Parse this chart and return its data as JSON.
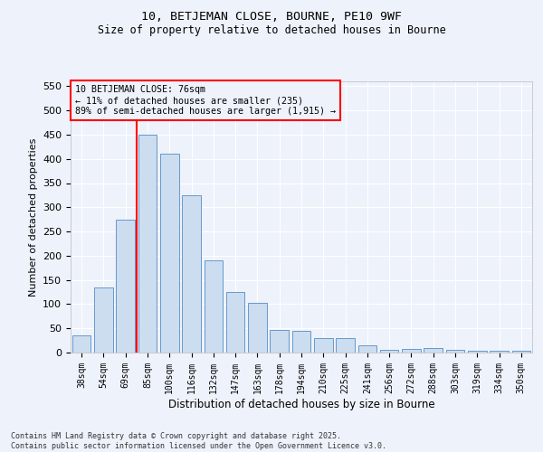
{
  "title1": "10, BETJEMAN CLOSE, BOURNE, PE10 9WF",
  "title2": "Size of property relative to detached houses in Bourne",
  "xlabel": "Distribution of detached houses by size in Bourne",
  "ylabel": "Number of detached properties",
  "categories": [
    "38sqm",
    "54sqm",
    "69sqm",
    "85sqm",
    "100sqm",
    "116sqm",
    "132sqm",
    "147sqm",
    "163sqm",
    "178sqm",
    "194sqm",
    "210sqm",
    "225sqm",
    "241sqm",
    "256sqm",
    "272sqm",
    "288sqm",
    "303sqm",
    "319sqm",
    "334sqm",
    "350sqm"
  ],
  "values": [
    35,
    135,
    275,
    450,
    410,
    325,
    190,
    125,
    103,
    46,
    45,
    30,
    30,
    15,
    5,
    8,
    10,
    5,
    4,
    3,
    3
  ],
  "bar_color": "#ccddf0",
  "bar_edge_color": "#6699cc",
  "vline_x_index": 2.5,
  "vline_color": "red",
  "annotation_box_text": "10 BETJEMAN CLOSE: 76sqm\n← 11% of detached houses are smaller (235)\n89% of semi-detached houses are larger (1,915) →",
  "annotation_box_color": "red",
  "ylim": [
    0,
    560
  ],
  "yticks": [
    0,
    50,
    100,
    150,
    200,
    250,
    300,
    350,
    400,
    450,
    500,
    550
  ],
  "footnote": "Contains HM Land Registry data © Crown copyright and database right 2025.\nContains public sector information licensed under the Open Government Licence v3.0.",
  "bg_color": "#eef2fb",
  "grid_color": "#ffffff"
}
